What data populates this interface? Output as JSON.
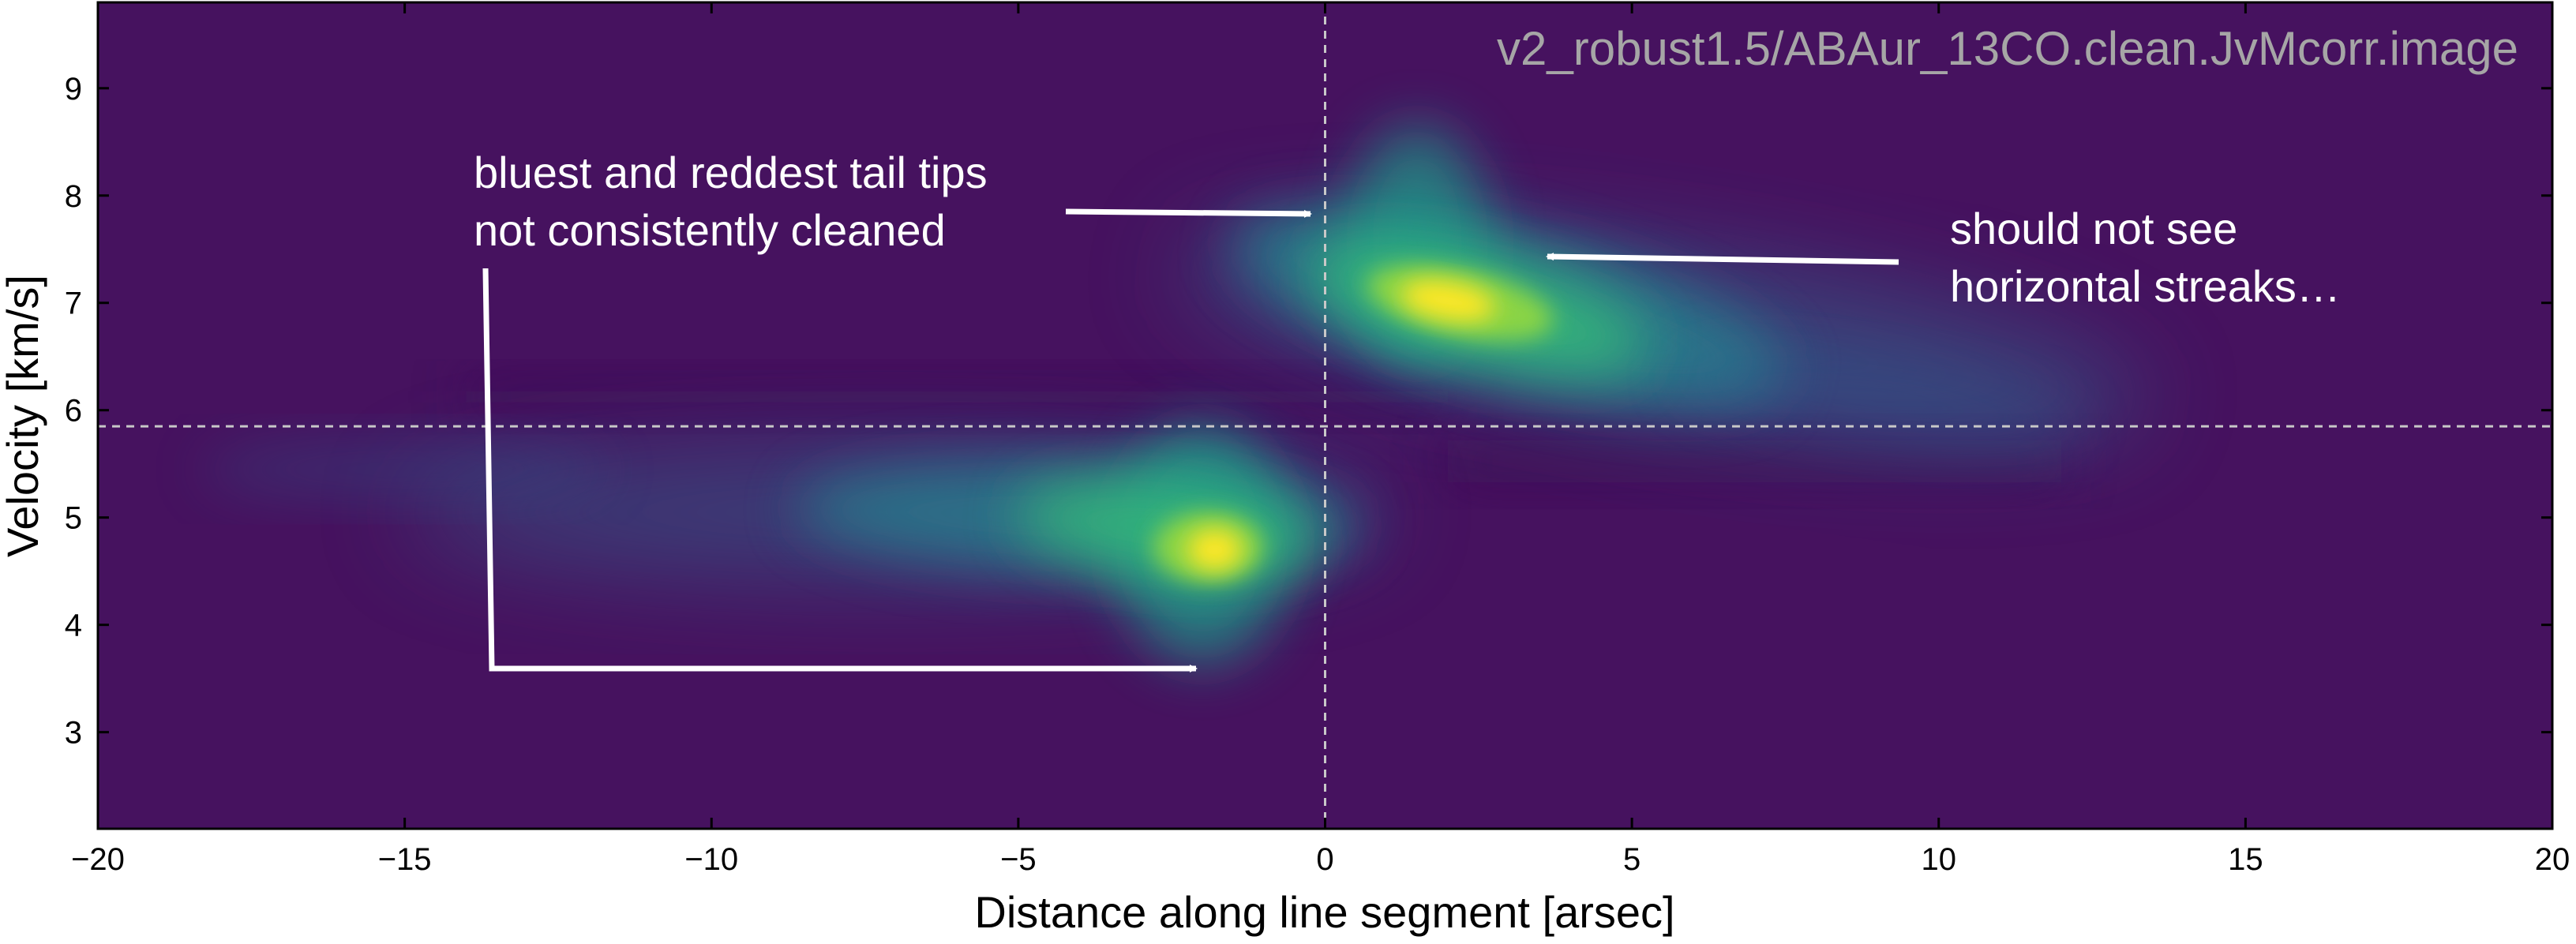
{
  "chart_data": {
    "type": "heatmap",
    "title": "v2_robust1.5/ABAur_13CO.clean.JvMcorr.image",
    "xlabel": "Distance along line segment [arsec]",
    "ylabel": "Velocity [km/s]",
    "xlim": [
      -20,
      20
    ],
    "ylim": [
      2.1,
      9.8
    ],
    "x_ticks": [
      -20,
      -15,
      -10,
      -5,
      0,
      5,
      10,
      15,
      20
    ],
    "x_tick_labels": [
      "−20",
      "−15",
      "−10",
      "−5",
      "0",
      "5",
      "10",
      "15",
      "20"
    ],
    "y_ticks": [
      3,
      4,
      5,
      6,
      7,
      8,
      9
    ],
    "y_tick_labels": [
      "3",
      "4",
      "5",
      "6",
      "7",
      "8",
      "9"
    ],
    "colormap": "viridis",
    "background_color": "#46125f",
    "reference_lines": {
      "x": 0,
      "y": 5.85,
      "style": "dashed",
      "color": "#c8c8c8"
    },
    "emission_features": [
      {
        "name": "redshifted-lobe",
        "peak_x": 2.0,
        "peak_y": 7.0,
        "x_range": [
          0.5,
          10.5
        ],
        "y_range": [
          6.0,
          8.3
        ]
      },
      {
        "name": "blueshifted-lobe",
        "peak_x": -1.8,
        "peak_y": 4.7,
        "x_range": [
          -15,
          -0.5
        ],
        "y_range": [
          3.8,
          5.6
        ]
      }
    ],
    "annotations": [
      {
        "lines": [
          "bluest and reddest tail tips",
          "not consistently cleaned"
        ],
        "color": "#ffffff"
      },
      {
        "lines": [
          "should not see",
          "horizontal streaks…"
        ],
        "color": "#ffffff"
      }
    ]
  }
}
